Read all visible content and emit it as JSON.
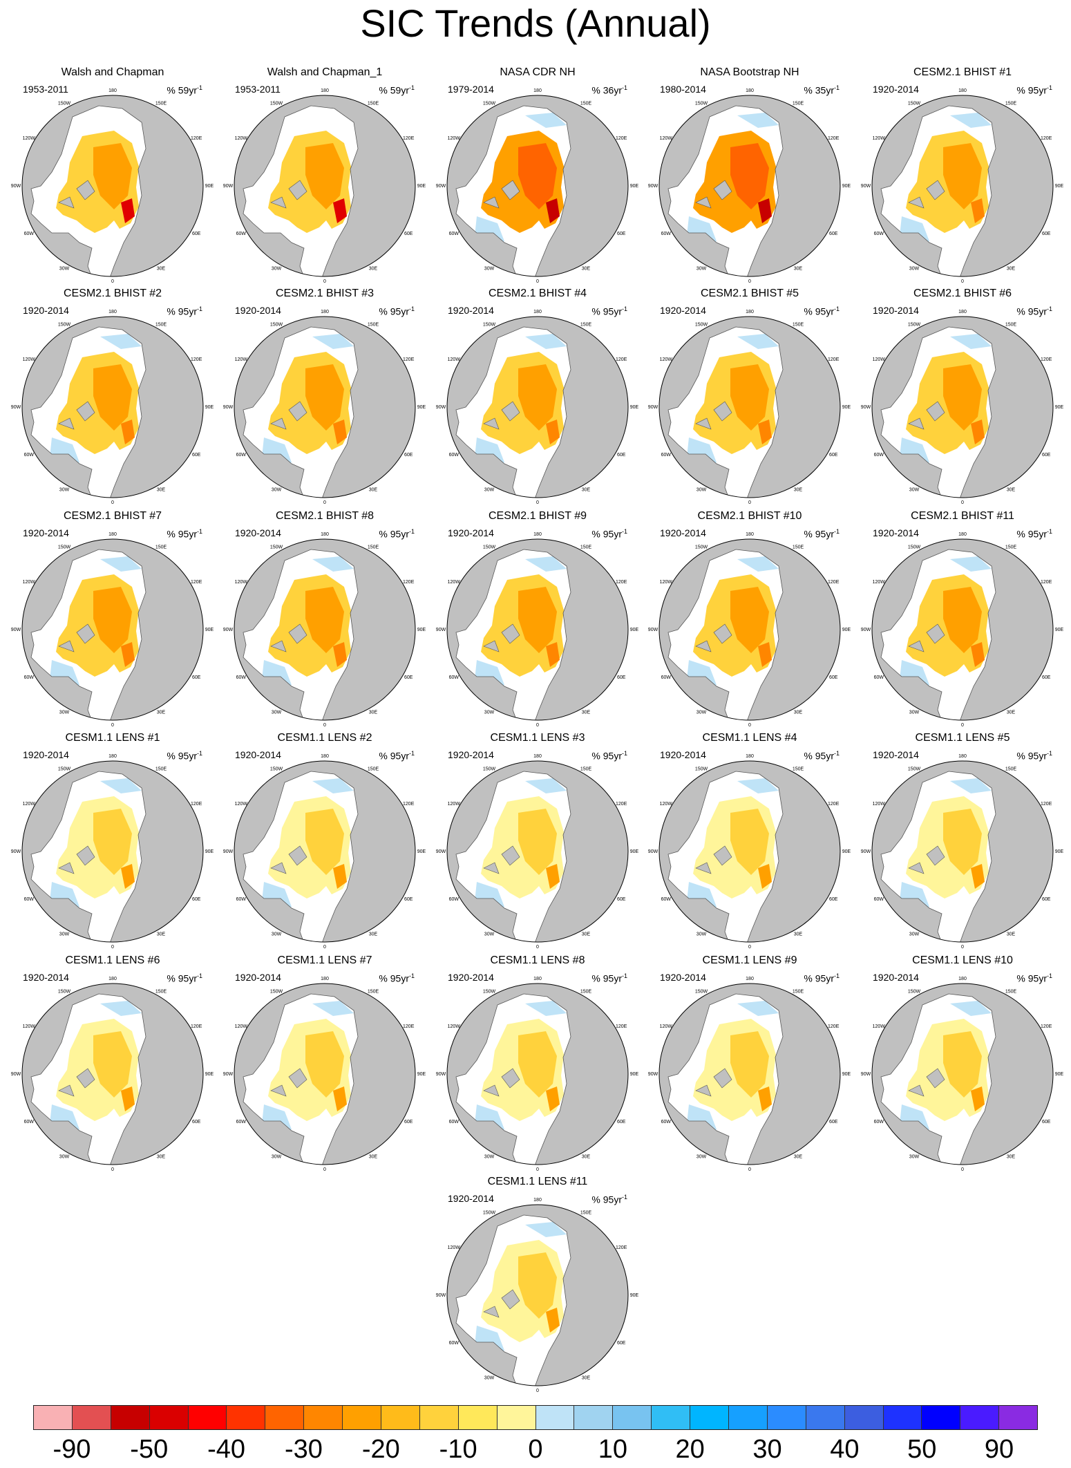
{
  "title": "SIC Trends (Annual)",
  "panels": [
    {
      "title": "Walsh and Chapman",
      "years": "1953-2011",
      "trend": "% 59yr",
      "style": "wc"
    },
    {
      "title": "Walsh and Chapman_1",
      "years": "1953-2011",
      "trend": "% 59yr",
      "style": "wc"
    },
    {
      "title": "NASA CDR NH",
      "years": "1979-2014",
      "trend": "% 36yr",
      "style": "sat"
    },
    {
      "title": "NASA Bootstrap NH",
      "years": "1980-2014",
      "trend": "% 35yr",
      "style": "sat"
    },
    {
      "title": "CESM2.1 BHIST #1",
      "years": "1920-2014",
      "trend": "% 95yr",
      "style": "model"
    },
    {
      "title": "CESM2.1 BHIST #2",
      "years": "1920-2014",
      "trend": "% 95yr",
      "style": "model"
    },
    {
      "title": "CESM2.1 BHIST #3",
      "years": "1920-2014",
      "trend": "% 95yr",
      "style": "model"
    },
    {
      "title": "CESM2.1 BHIST #4",
      "years": "1920-2014",
      "trend": "% 95yr",
      "style": "model"
    },
    {
      "title": "CESM2.1 BHIST #5",
      "years": "1920-2014",
      "trend": "% 95yr",
      "style": "model"
    },
    {
      "title": "CESM2.1 BHIST #6",
      "years": "1920-2014",
      "trend": "% 95yr",
      "style": "model"
    },
    {
      "title": "CESM2.1 BHIST #7",
      "years": "1920-2014",
      "trend": "% 95yr",
      "style": "model"
    },
    {
      "title": "CESM2.1 BHIST #8",
      "years": "1920-2014",
      "trend": "% 95yr",
      "style": "model"
    },
    {
      "title": "CESM2.1 BHIST #9",
      "years": "1920-2014",
      "trend": "% 95yr",
      "style": "model"
    },
    {
      "title": "CESM2.1 BHIST #10",
      "years": "1920-2014",
      "trend": "% 95yr",
      "style": "model"
    },
    {
      "title": "CESM2.1 BHIST #11",
      "years": "1920-2014",
      "trend": "% 95yr",
      "style": "model"
    },
    {
      "title": "CESM1.1 LENS #1",
      "years": "1920-2014",
      "trend": "% 95yr",
      "style": "lens"
    },
    {
      "title": "CESM1.1 LENS #2",
      "years": "1920-2014",
      "trend": "% 95yr",
      "style": "lens"
    },
    {
      "title": "CESM1.1 LENS #3",
      "years": "1920-2014",
      "trend": "% 95yr",
      "style": "lens"
    },
    {
      "title": "CESM1.1 LENS #4",
      "years": "1920-2014",
      "trend": "% 95yr",
      "style": "lens"
    },
    {
      "title": "CESM1.1 LENS #5",
      "years": "1920-2014",
      "trend": "% 95yr",
      "style": "lens"
    },
    {
      "title": "CESM1.1 LENS #6",
      "years": "1920-2014",
      "trend": "% 95yr",
      "style": "lens"
    },
    {
      "title": "CESM1.1 LENS #7",
      "years": "1920-2014",
      "trend": "% 95yr",
      "style": "lens"
    },
    {
      "title": "CESM1.1 LENS #8",
      "years": "1920-2014",
      "trend": "% 95yr",
      "style": "lens"
    },
    {
      "title": "CESM1.1 LENS #9",
      "years": "1920-2014",
      "trend": "% 95yr",
      "style": "lens"
    },
    {
      "title": "CESM1.1 LENS #10",
      "years": "1920-2014",
      "trend": "% 95yr",
      "style": "lens"
    },
    {
      "title": "CESM1.1 LENS #11",
      "years": "1920-2014",
      "trend": "% 95yr",
      "style": "lens"
    }
  ],
  "trend_superscript": "-1",
  "lon_labels": [
    "180",
    "150E",
    "120E",
    "90E",
    "60E",
    "30E",
    "0",
    "30W",
    "60W",
    "90W",
    "120W",
    "150W"
  ],
  "colorbar": {
    "colors": [
      "#f9b1b4",
      "#e35052",
      "#c70000",
      "#da0000",
      "#ff0000",
      "#ff3300",
      "#ff6400",
      "#ff8600",
      "#ffa000",
      "#ffbb1a",
      "#ffd23c",
      "#ffe85a",
      "#fff59a",
      "#bfe3f7",
      "#a0d3f0",
      "#78c3f0",
      "#30bef5",
      "#00b5ff",
      "#16a0ff",
      "#2b8cff",
      "#3a78ee",
      "#3c5ee0",
      "#1e32ff",
      "#0000ff",
      "#4a1bff",
      "#8a2be2"
    ],
    "labels": [
      "-90",
      "-50",
      "-40",
      "-30",
      "-20",
      "-10",
      "0",
      "10",
      "20",
      "30",
      "40",
      "50",
      "90"
    ]
  }
}
